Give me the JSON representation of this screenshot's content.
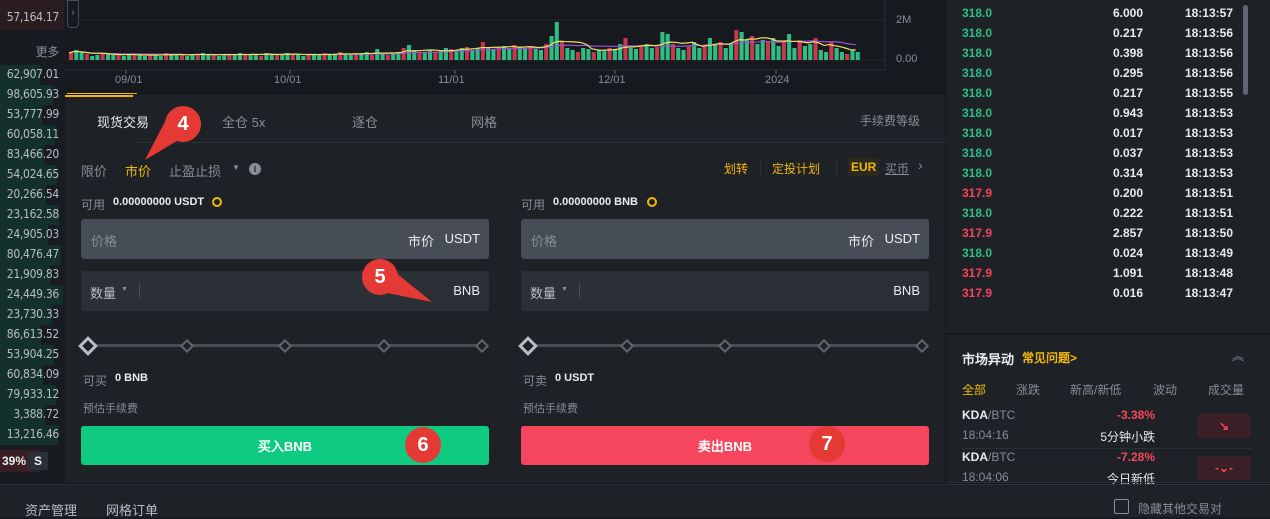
{
  "left_list": {
    "top_value": "57,164.17",
    "more": "更多",
    "values": [
      "62,907.01",
      "98,605.93",
      "53,777.99",
      "60,058.11",
      "83,466.20",
      "54,024.65",
      "20,266.54",
      "23,162.58",
      "24,905.03",
      "80,476.47",
      "21,909.83",
      "24,449.36",
      "23,730.33",
      "86,613.52",
      "53,904.25",
      "60,834.09",
      "79,933.12",
      "3,388.72",
      "13,216.46"
    ],
    "percent": "39%",
    "s_label": "S"
  },
  "chart": {
    "y_ticks": [
      "2M",
      "0.00"
    ],
    "x_ticks": [
      "09/01",
      "10/01",
      "11/01",
      "12/01",
      "2024"
    ],
    "up_color": "#2ebd85",
    "down_color": "#c9394c",
    "volumes": [
      0.35,
      0.5,
      0.4,
      0.3,
      0.2,
      0.25,
      0.35,
      0.3,
      0.25,
      0.3,
      0.2,
      0.25,
      0.3,
      0.25,
      0.2,
      0.3,
      0.25,
      0.2,
      0.35,
      0.3,
      0.25,
      0.3,
      0.2,
      0.25,
      0.3,
      0.35,
      0.25,
      0.3,
      0.2,
      0.25,
      0.3,
      0.25,
      0.35,
      0.3,
      0.25,
      0.3,
      0.2,
      0.35,
      0.3,
      0.25,
      0.3,
      0.35,
      0.25,
      0.3,
      0.2,
      0.25,
      0.3,
      0.25,
      0.35,
      0.3,
      0.25,
      0.4,
      0.3,
      0.25,
      0.3,
      0.35,
      0.4,
      0.25,
      0.55,
      0.3,
      0.25,
      0.35,
      0.4,
      0.6,
      0.75,
      0.5,
      0.4,
      0.35,
      0.5,
      0.4,
      0.45,
      0.6,
      0.55,
      0.5,
      0.6,
      0.65,
      0.5,
      0.6,
      0.9,
      0.6,
      0.55,
      0.65,
      0.7,
      0.6,
      0.75,
      0.65,
      0.6,
      0.7,
      0.55,
      0.5,
      0.8,
      1.2,
      1.9,
      0.9,
      0.6,
      0.5,
      0.4,
      0.6,
      0.55,
      0.4,
      0.5,
      0.45,
      0.6,
      0.5,
      0.8,
      1.1,
      0.6,
      0.55,
      0.7,
      0.8,
      0.6,
      0.65,
      1.4,
      1.3,
      0.8,
      0.6,
      0.5,
      0.7,
      0.9,
      0.6,
      0.7,
      1.1,
      0.8,
      0.9,
      0.6,
      0.8,
      1.5,
      1.4,
      1.0,
      1.2,
      0.8,
      1.0,
      0.9,
      1.1,
      0.7,
      0.9,
      1.3,
      0.6,
      1.0,
      0.7,
      0.8,
      1.1,
      0.5,
      0.4,
      0.9,
      0.6,
      0.4,
      0.3,
      0.5,
      0.4
    ]
  },
  "tabs": [
    {
      "label": "现货交易"
    },
    {
      "label": "全仓 5x"
    },
    {
      "label": "逐仓"
    },
    {
      "label": "网格"
    }
  ],
  "fee_level": "手续费等级",
  "order_types": {
    "limit": "限价",
    "market": "市价",
    "stop": "止盈止损"
  },
  "links": {
    "transfer": "划转",
    "recurring": "定投计划",
    "currency": "EUR",
    "buy_crypto": "买币"
  },
  "buy": {
    "available_label": "可用",
    "available_value": "0.00000000 USDT",
    "price_placeholder": "价格",
    "price_value": "市价",
    "price_unit": "USDT",
    "qty_label": "数量",
    "qty_unit": "BNB",
    "max_label": "可买",
    "max_value": "0 BNB",
    "fee_label": "预估手续费",
    "button": "买入BNB"
  },
  "sell": {
    "available_label": "可用",
    "available_value": "0.00000000 BNB",
    "price_placeholder": "价格",
    "price_value": "市价",
    "price_unit": "USDT",
    "qty_label": "数量",
    "qty_unit": "BNB",
    "max_label": "可卖",
    "max_value": "0 USDT",
    "fee_label": "预估手续费",
    "button": "卖出BNB"
  },
  "trades": [
    {
      "price": "318.0",
      "qty": "6.000",
      "time": "18:13:57",
      "side": "up"
    },
    {
      "price": "318.0",
      "qty": "0.217",
      "time": "18:13:56",
      "side": "up"
    },
    {
      "price": "318.0",
      "qty": "0.398",
      "time": "18:13:56",
      "side": "up"
    },
    {
      "price": "318.0",
      "qty": "0.295",
      "time": "18:13:56",
      "side": "up"
    },
    {
      "price": "318.0",
      "qty": "0.217",
      "time": "18:13:55",
      "side": "up"
    },
    {
      "price": "318.0",
      "qty": "0.943",
      "time": "18:13:53",
      "side": "up"
    },
    {
      "price": "318.0",
      "qty": "0.017",
      "time": "18:13:53",
      "side": "up"
    },
    {
      "price": "318.0",
      "qty": "0.037",
      "time": "18:13:53",
      "side": "up"
    },
    {
      "price": "318.0",
      "qty": "0.314",
      "time": "18:13:53",
      "side": "up"
    },
    {
      "price": "317.9",
      "qty": "0.200",
      "time": "18:13:51",
      "side": "down"
    },
    {
      "price": "318.0",
      "qty": "0.222",
      "time": "18:13:51",
      "side": "up"
    },
    {
      "price": "317.9",
      "qty": "2.857",
      "time": "18:13:50",
      "side": "down"
    },
    {
      "price": "318.0",
      "qty": "0.024",
      "time": "18:13:49",
      "side": "up"
    },
    {
      "price": "317.9",
      "qty": "1.091",
      "time": "18:13:48",
      "side": "down"
    },
    {
      "price": "317.9",
      "qty": "0.016",
      "time": "18:13:47",
      "side": "down"
    }
  ],
  "movers": {
    "title": "市场异动",
    "faq": "常见问题>",
    "filters": [
      "全部",
      "涨跌",
      "新高/新低",
      "波动",
      "成交量"
    ],
    "items": [
      {
        "base": "KDA",
        "quote": "/BTC",
        "time": "18:04:16",
        "change": "-3.38%",
        "desc": "5分钟小跌",
        "icon": "arrow-down-right-icon"
      },
      {
        "base": "KDA",
        "quote": "/BTC",
        "time": "18:04:06",
        "change": "-7.28%",
        "desc": "今日新低",
        "icon": "new-low-icon"
      }
    ]
  },
  "bottom": {
    "tabs": [
      "资产管理",
      "网格订单"
    ],
    "hide_pairs": "隐藏其他交易对"
  },
  "markers": [
    "4",
    "5",
    "6",
    "7"
  ],
  "colors": {
    "accent": "#f0b90b",
    "buy": "#0ecb81",
    "sell": "#f6465d"
  }
}
